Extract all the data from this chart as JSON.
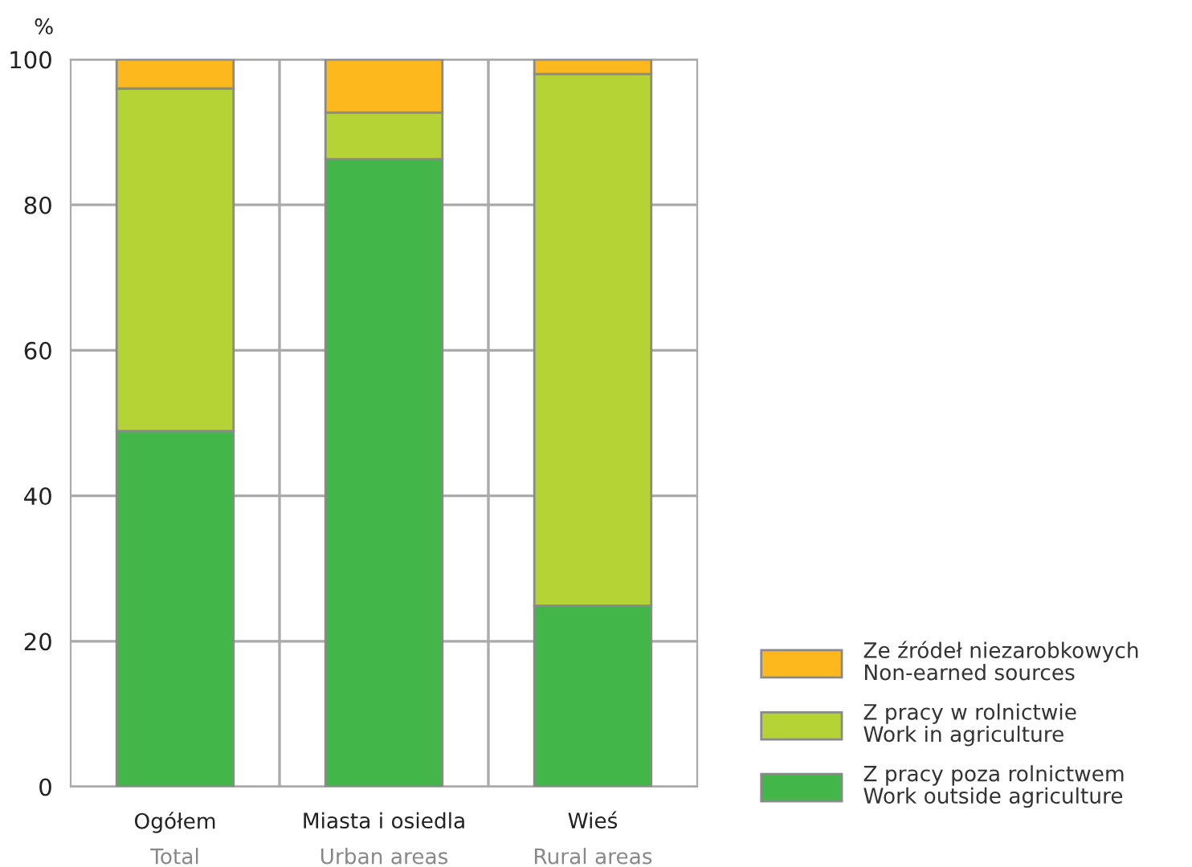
{
  "chart_data": {
    "type": "bar",
    "stacked": true,
    "ylabel": "%",
    "categories": [
      "Ogółem\nTotal",
      "Miasta i osiedla\nUrban areas",
      "Wieś\nRural areas"
    ],
    "series": [
      {
        "name": "Z pracy poza rolnictwem\nWork outside agriculture",
        "color": "#43b649",
        "values": [
          48.9,
          86.3,
          24.9
        ]
      },
      {
        "name": "Z pracy w rolnictwie\nWork in agriculture",
        "color": "#b5d334",
        "values": [
          47.1,
          6.4,
          73.1
        ]
      },
      {
        "name": "Ze źródeł niezarobkowych\nNon-earned sources",
        "color": "#fdb81e",
        "values": [
          4.0,
          7.3,
          2.0
        ]
      }
    ],
    "ylim": [
      0,
      100
    ],
    "yticks": [
      0,
      20,
      40,
      60,
      80,
      100
    ],
    "grid": true,
    "legend": "bottom right"
  }
}
